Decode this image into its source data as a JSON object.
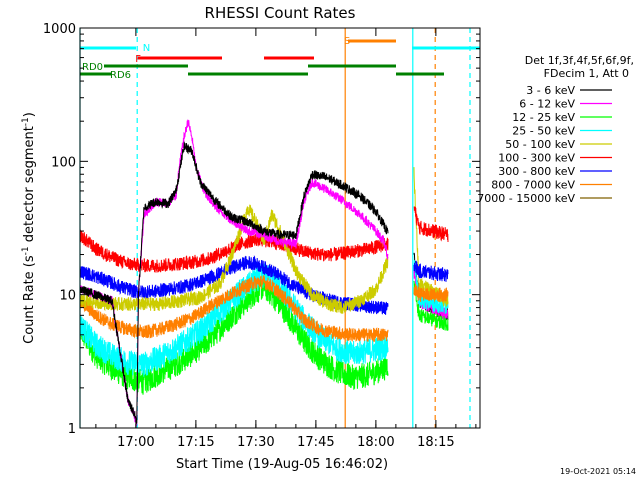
{
  "chart_data": {
    "type": "line",
    "title": "RHESSI Count Rates",
    "xlabel": "Start Time (19-Aug-05 16:46:02)",
    "ylabel_main": "Count Rate (s",
    "ylabel_sup1": "-1",
    "ylabel_mid": " detector segment",
    "ylabel_sup2": "-1",
    "ylabel_end": ")",
    "yscale": "log",
    "ylim": [
      1,
      1000
    ],
    "xlim_minutes": [
      0,
      100
    ],
    "xticks": [
      {
        "label": "17:00",
        "minute": 13.97
      },
      {
        "label": "17:15",
        "minute": 28.97
      },
      {
        "label": "17:30",
        "minute": 43.97
      },
      {
        "label": "17:45",
        "minute": 58.97
      },
      {
        "label": "18:00",
        "minute": 73.97
      },
      {
        "label": "18:15",
        "minute": 88.97
      }
    ],
    "yticks": [
      {
        "label": "1",
        "value": 1
      },
      {
        "label": "10",
        "value": 10
      },
      {
        "label": "100",
        "value": 100
      },
      {
        "label": "1000",
        "value": 1000
      }
    ],
    "legend_header": [
      "Det 1f,3f,4f,5f,6f,9f,",
      "FDecim 1, Att 0"
    ],
    "legend_position": "right",
    "series": [
      {
        "name": "3 - 6 keV",
        "color": "#000000",
        "points": [
          [
            0,
            11
          ],
          [
            8,
            9
          ],
          [
            12,
            1.6
          ],
          [
            13.5,
            1.3
          ],
          [
            14.2,
            1.1
          ],
          [
            14.6,
            10
          ],
          [
            16,
            45
          ],
          [
            19,
            50
          ],
          [
            22,
            48
          ],
          [
            24,
            60
          ],
          [
            26,
            130
          ],
          [
            28,
            120
          ],
          [
            30,
            70
          ],
          [
            34,
            50
          ],
          [
            38,
            38
          ],
          [
            42,
            35
          ],
          [
            46,
            30
          ],
          [
            50,
            28
          ],
          [
            54,
            28
          ],
          [
            56,
            55
          ],
          [
            58,
            80
          ],
          [
            62,
            75
          ],
          [
            66,
            65
          ],
          [
            70,
            55
          ],
          [
            74,
            42
          ],
          [
            76,
            33
          ],
          [
            77,
            29
          ]
        ]
      },
      {
        "name": "6 - 12 keV",
        "color": "#ff00ff",
        "points": [
          [
            0,
            11
          ],
          [
            8,
            9
          ],
          [
            12,
            1.6
          ],
          [
            14.2,
            1.1
          ],
          [
            14.6,
            10
          ],
          [
            16,
            40
          ],
          [
            19,
            50
          ],
          [
            22,
            48
          ],
          [
            24,
            55
          ],
          [
            25,
            100
          ],
          [
            26,
            150
          ],
          [
            27,
            200
          ],
          [
            28,
            150
          ],
          [
            29,
            90
          ],
          [
            31,
            60
          ],
          [
            34,
            45
          ],
          [
            38,
            36
          ],
          [
            42,
            30
          ],
          [
            46,
            28
          ],
          [
            50,
            25
          ],
          [
            54,
            24
          ],
          [
            56,
            50
          ],
          [
            58,
            70
          ],
          [
            62,
            60
          ],
          [
            66,
            50
          ],
          [
            70,
            40
          ],
          [
            74,
            30
          ],
          [
            76,
            25
          ],
          [
            77,
            19
          ]
        ]
      },
      {
        "name": "12 - 25 keV",
        "color": "#00ff00",
        "points": [
          [
            0,
            5.5
          ],
          [
            4,
            3.5
          ],
          [
            8,
            2.8
          ],
          [
            12,
            2.4
          ],
          [
            16,
            2.2
          ],
          [
            20,
            2.6
          ],
          [
            24,
            3.0
          ],
          [
            28,
            3.6
          ],
          [
            32,
            4.5
          ],
          [
            36,
            6
          ],
          [
            40,
            8
          ],
          [
            44,
            10.5
          ],
          [
            46,
            11.5
          ],
          [
            48,
            10
          ],
          [
            52,
            7
          ],
          [
            56,
            4.5
          ],
          [
            60,
            3.3
          ],
          [
            64,
            2.7
          ],
          [
            68,
            2.4
          ],
          [
            72,
            2.5
          ],
          [
            76,
            2.8
          ],
          [
            77,
            3.0
          ]
        ]
      },
      {
        "name": "25 - 50 keV",
        "color": "#00ffff",
        "points": [
          [
            0,
            6
          ],
          [
            4,
            4.2
          ],
          [
            8,
            3.5
          ],
          [
            12,
            3.1
          ],
          [
            16,
            3.0
          ],
          [
            20,
            3.4
          ],
          [
            24,
            4.0
          ],
          [
            28,
            4.8
          ],
          [
            32,
            6
          ],
          [
            36,
            8
          ],
          [
            40,
            10.5
          ],
          [
            44,
            13
          ],
          [
            46,
            14
          ],
          [
            48,
            13
          ],
          [
            52,
            9.5
          ],
          [
            56,
            6.5
          ],
          [
            60,
            4.8
          ],
          [
            64,
            4.0
          ],
          [
            68,
            3.6
          ],
          [
            72,
            3.8
          ],
          [
            76,
            4.0
          ],
          [
            77,
            4.2
          ]
        ]
      },
      {
        "name": "50 - 100 keV",
        "color": "#cccc00",
        "points": [
          [
            0,
            9
          ],
          [
            10,
            8.5
          ],
          [
            20,
            8.5
          ],
          [
            30,
            9.5
          ],
          [
            35,
            12
          ],
          [
            38,
            20
          ],
          [
            40,
            30
          ],
          [
            42,
            45
          ],
          [
            44,
            35
          ],
          [
            46,
            25
          ],
          [
            48,
            40
          ],
          [
            50,
            30
          ],
          [
            54,
            15
          ],
          [
            58,
            10
          ],
          [
            62,
            8.5
          ],
          [
            66,
            8.0
          ],
          [
            70,
            9.0
          ],
          [
            74,
            11
          ],
          [
            77,
            18
          ]
        ]
      },
      {
        "name": "100 - 300 keV",
        "color": "#ff0000",
        "points": [
          [
            0,
            28
          ],
          [
            4,
            22
          ],
          [
            8,
            19
          ],
          [
            12,
            17
          ],
          [
            16,
            16.5
          ],
          [
            20,
            16.5
          ],
          [
            24,
            17
          ],
          [
            28,
            17.5
          ],
          [
            32,
            18.5
          ],
          [
            36,
            21
          ],
          [
            40,
            24
          ],
          [
            44,
            26
          ],
          [
            48,
            25
          ],
          [
            52,
            23
          ],
          [
            56,
            21
          ],
          [
            60,
            20
          ],
          [
            64,
            20
          ],
          [
            68,
            21
          ],
          [
            72,
            22
          ],
          [
            77,
            24
          ]
        ]
      },
      {
        "name": "300 - 800 keV",
        "color": "#0000ff",
        "points": [
          [
            0,
            15
          ],
          [
            6,
            13
          ],
          [
            10,
            11.5
          ],
          [
            14,
            10.5
          ],
          [
            18,
            10.5
          ],
          [
            22,
            11
          ],
          [
            26,
            11.5
          ],
          [
            30,
            12.5
          ],
          [
            34,
            14
          ],
          [
            38,
            16
          ],
          [
            42,
            17.5
          ],
          [
            44,
            17
          ],
          [
            48,
            15
          ],
          [
            52,
            12.5
          ],
          [
            56,
            10.5
          ],
          [
            60,
            9.5
          ],
          [
            64,
            8.8
          ],
          [
            68,
            8.5
          ],
          [
            72,
            8.2
          ],
          [
            77,
            7.8
          ]
        ]
      },
      {
        "name": "800 - 7000 keV",
        "color": "#ff8000",
        "points": [
          [
            0,
            9
          ],
          [
            4,
            7
          ],
          [
            8,
            6
          ],
          [
            12,
            5.5
          ],
          [
            16,
            5.2
          ],
          [
            20,
            5.5
          ],
          [
            24,
            6
          ],
          [
            28,
            6.7
          ],
          [
            32,
            8
          ],
          [
            36,
            9.5
          ],
          [
            40,
            11
          ],
          [
            44,
            12.5
          ],
          [
            46,
            12.5
          ],
          [
            48,
            11.5
          ],
          [
            52,
            9
          ],
          [
            56,
            6.5
          ],
          [
            60,
            5.5
          ],
          [
            64,
            5.2
          ],
          [
            68,
            5.0
          ],
          [
            72,
            5.0
          ],
          [
            77,
            5.0
          ]
        ]
      },
      {
        "name": "7000 - 15000 keV",
        "color": "#806000",
        "points": []
      }
    ],
    "segment2": {
      "x_range_minutes": [
        83.5,
        92
      ],
      "series_levels": {
        "3 - 6 keV": [
          20,
          9,
          7
        ],
        "6 - 12 keV": [
          15,
          9,
          7
        ],
        "12 - 25 keV": [
          12,
          7,
          6
        ],
        "25 - 50 keV": [
          18,
          9,
          8
        ],
        "50 - 100 keV": [
          80,
          12,
          9
        ],
        "100 - 300 keV": [
          45,
          32,
          28
        ],
        "300 - 800 keV": [
          17,
          15,
          14
        ],
        "800 - 7000 keV": [
          11,
          10,
          10
        ]
      }
    },
    "flags": [
      {
        "label": "N",
        "color": "#00ffff",
        "segments": [
          [
            0,
            14
          ]
        ],
        "label_minute": 15.2
      },
      {
        "label": "",
        "color": "#00ffff",
        "segments": [
          [
            83,
            100
          ]
        ]
      },
      {
        "label": "F",
        "color": "#ff0000",
        "segments": [
          [
            14.5,
            35.5
          ],
          [
            46,
            58.5
          ]
        ],
        "label_minute": 13.3
      },
      {
        "label": "S",
        "color": "#ff8000",
        "segments": [
          [
            67,
            79
          ]
        ],
        "label_minute": 65.5
      },
      {
        "label": "RD0",
        "color": "#008000",
        "segments": [
          [
            6,
            27
          ],
          [
            57,
            79
          ]
        ],
        "label_minute": 0
      },
      {
        "label": "RD6",
        "color": "#008000",
        "segments": [
          [
            0,
            8
          ],
          [
            27,
            57
          ],
          [
            79,
            91
          ]
        ],
        "label_minute": 7
      }
    ],
    "vlines": [
      {
        "minute": 0,
        "color": "#00ffff",
        "style": "solid"
      },
      {
        "minute": 14.3,
        "color": "#00ffff",
        "style": "dashed"
      },
      {
        "minute": 66.3,
        "color": "#ff8000",
        "style": "solid"
      },
      {
        "minute": 83.2,
        "color": "#00ffff",
        "style": "solid"
      },
      {
        "minute": 88.8,
        "color": "#ff8000",
        "style": "dashed"
      },
      {
        "minute": 97.5,
        "color": "#00ffff",
        "style": "dashed"
      }
    ],
    "footer_date": "19-Oct-2021 05:14"
  }
}
